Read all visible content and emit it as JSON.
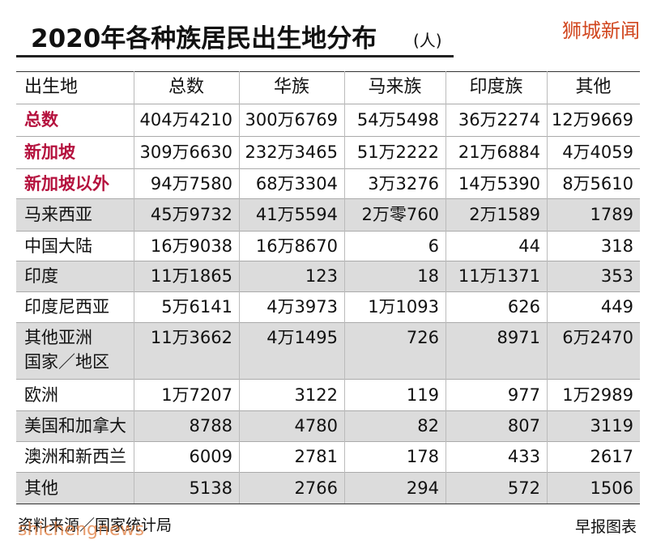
{
  "header": {
    "title": "2020年各种族居民出生地分布",
    "unit": "(人)",
    "watermark": "狮城新闻"
  },
  "table": {
    "columns": [
      "出生地",
      "总数",
      "华族",
      "马来族",
      "印度族",
      "其他"
    ],
    "rows": [
      [
        "总数",
        "404万4210",
        "300万6769",
        "54万5498",
        "36万2274",
        "12万9669"
      ],
      [
        "新加坡",
        "309万6630",
        "232万3465",
        "51万2222",
        "21万6884",
        "4万4059"
      ],
      [
        "新加坡以外",
        "94万7580",
        "68万3304",
        "3万3276",
        "14万5390",
        "8万5610"
      ],
      [
        "马来西亚",
        "45万9732",
        "41万5594",
        "2万零760",
        "2万1589",
        "1789"
      ],
      [
        "中国大陆",
        "16万9038",
        "16万8670",
        "6",
        "44",
        "318"
      ],
      [
        "印度",
        "11万1865",
        "123",
        "18",
        "11万1371",
        "353"
      ],
      [
        "印度尼西亚",
        "5万6141",
        "4万3973",
        "1万1093",
        "626",
        "449"
      ],
      [
        "其他亚洲\n国家／地区",
        "11万3662",
        "4万1495",
        "726",
        "8971",
        "6万2470"
      ],
      [
        "欧洲",
        "1万7207",
        "3122",
        "119",
        "977",
        "1万2989"
      ],
      [
        "美国和加拿大",
        "8788",
        "4780",
        "82",
        "807",
        "3119"
      ],
      [
        "澳洲和新西兰",
        "6009",
        "2781",
        "178",
        "433",
        "2617"
      ],
      [
        "其他",
        "5138",
        "2766",
        "294",
        "572",
        "1506"
      ]
    ]
  },
  "footer": {
    "source": "资料来源／国家统计局",
    "credit": "早报图表",
    "watermark": "shichengnews"
  }
}
